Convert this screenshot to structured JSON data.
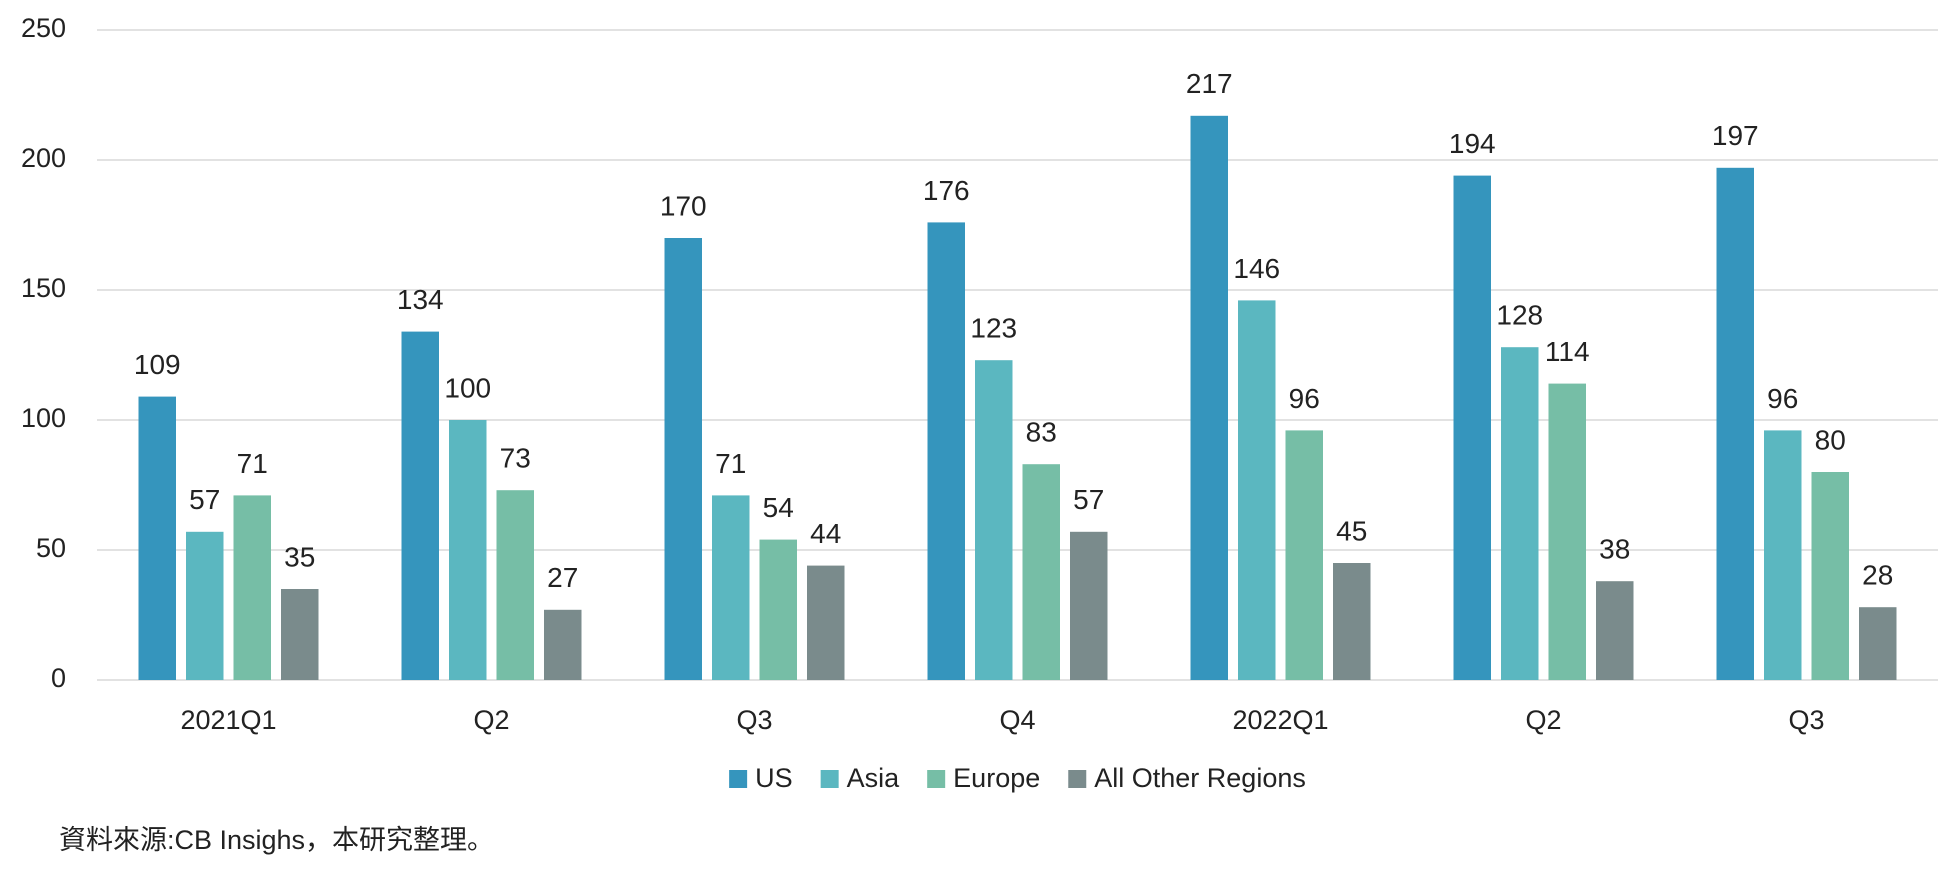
{
  "chart_data": {
    "type": "bar",
    "categories": [
      "2021Q1",
      "Q2",
      "Q3",
      "Q4",
      "2022Q1",
      "Q2",
      "Q3"
    ],
    "series": [
      {
        "name": "US",
        "color": "#3595bd",
        "values": [
          109,
          134,
          170,
          176,
          217,
          194,
          197
        ]
      },
      {
        "name": "Asia",
        "color": "#5bb7c0",
        "values": [
          57,
          100,
          71,
          123,
          146,
          128,
          96
        ]
      },
      {
        "name": "Europe",
        "color": "#76bea6",
        "values": [
          71,
          73,
          54,
          83,
          96,
          114,
          80
        ]
      },
      {
        "name": "All Other Regions",
        "color": "#7a8b8c",
        "values": [
          35,
          27,
          44,
          57,
          45,
          38,
          28
        ]
      }
    ],
    "ylim": [
      0,
      250
    ],
    "yticks": [
      0,
      50,
      100,
      150,
      200,
      250
    ],
    "grid": true,
    "legend": "bottom",
    "source": "資料來源:CB Insighs，本研究整理。"
  }
}
